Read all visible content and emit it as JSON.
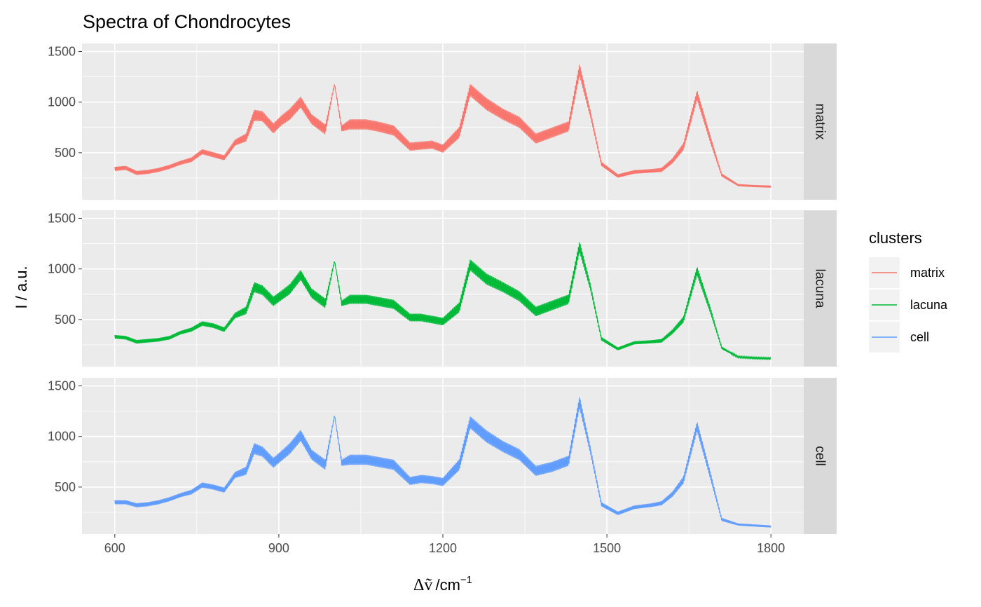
{
  "chart_data": {
    "type": "line",
    "title": "Spectra of Chondrocytes",
    "xlabel": {
      "symbol": "Δṽ",
      "slash": "/",
      "unit": "cm",
      "exponent": "−1"
    },
    "ylabel": "I / a.u.",
    "xlim": [
      540,
      1860
    ],
    "ylim": [
      35,
      1580
    ],
    "x_ticks": [
      600,
      900,
      1200,
      1500,
      1800
    ],
    "y_ticks": [
      500,
      1000,
      1500
    ],
    "grid": true,
    "facet": "rows",
    "legend": {
      "title": "clusters",
      "position": "right",
      "entries": [
        "matrix",
        "lacuna",
        "cell"
      ]
    },
    "series": [
      {
        "name": "matrix",
        "color": "#f8766d",
        "x": [
          600,
          620,
          640,
          660,
          680,
          700,
          720,
          740,
          760,
          780,
          800,
          820,
          840,
          855,
          870,
          890,
          905,
          920,
          940,
          960,
          985,
          1002,
          1015,
          1030,
          1060,
          1080,
          1110,
          1140,
          1160,
          1180,
          1200,
          1230,
          1250,
          1280,
          1310,
          1340,
          1370,
          1400,
          1430,
          1450,
          1470,
          1490,
          1520,
          1550,
          1580,
          1600,
          1620,
          1640,
          1665,
          1690,
          1710,
          1740,
          1770,
          1800
        ],
        "y": [
          340,
          350,
          300,
          310,
          330,
          360,
          400,
          430,
          510,
          480,
          450,
          600,
          650,
          870,
          860,
          740,
          820,
          880,
          1000,
          830,
          730,
          1180,
          740,
          780,
          780,
          760,
          720,
          560,
          570,
          580,
          540,
          700,
          1120,
          980,
          880,
          800,
          640,
          700,
          760,
          1320,
          880,
          390,
          270,
          310,
          320,
          330,
          420,
          560,
          1070,
          620,
          280,
          180,
          170,
          165
        ],
        "amp": [
          40,
          40,
          40,
          40,
          40,
          40,
          40,
          45,
          50,
          50,
          50,
          60,
          80,
          110,
          100,
          100,
          100,
          110,
          110,
          100,
          100,
          20,
          60,
          100,
          100,
          100,
          100,
          80,
          80,
          80,
          80,
          110,
          120,
          120,
          110,
          110,
          100,
          100,
          100,
          120,
          70,
          40,
          35,
          35,
          35,
          40,
          50,
          70,
          100,
          70,
          30,
          20,
          20,
          20
        ]
      },
      {
        "name": "lacuna",
        "color": "#00ba38",
        "x": [
          600,
          620,
          640,
          660,
          680,
          700,
          720,
          740,
          760,
          780,
          800,
          820,
          840,
          855,
          870,
          890,
          905,
          920,
          940,
          960,
          985,
          1002,
          1015,
          1030,
          1060,
          1080,
          1110,
          1140,
          1160,
          1180,
          1200,
          1230,
          1250,
          1280,
          1310,
          1340,
          1370,
          1400,
          1430,
          1450,
          1470,
          1490,
          1520,
          1550,
          1580,
          1600,
          1620,
          1640,
          1665,
          1690,
          1710,
          1740,
          1770,
          1800
        ],
        "y": [
          330,
          320,
          280,
          290,
          300,
          320,
          370,
          400,
          460,
          440,
          400,
          540,
          590,
          820,
          790,
          680,
          740,
          800,
          940,
          760,
          660,
          1080,
          660,
          700,
          700,
          680,
          650,
          520,
          520,
          500,
          480,
          620,
          1040,
          900,
          820,
          730,
          580,
          640,
          700,
          1220,
          820,
          310,
          210,
          270,
          280,
          290,
          380,
          500,
          980,
          580,
          220,
          130,
          120,
          115
        ],
        "amp": [
          35,
          35,
          35,
          35,
          35,
          35,
          35,
          40,
          45,
          45,
          45,
          55,
          75,
          100,
          95,
          95,
          95,
          100,
          100,
          95,
          95,
          15,
          55,
          90,
          90,
          90,
          90,
          75,
          75,
          75,
          75,
          100,
          110,
          110,
          100,
          100,
          95,
          95,
          95,
          110,
          65,
          35,
          30,
          30,
          30,
          35,
          45,
          60,
          90,
          60,
          25,
          15,
          15,
          15
        ]
      },
      {
        "name": "cell",
        "color": "#619cff",
        "x": [
          600,
          620,
          640,
          660,
          680,
          700,
          720,
          740,
          760,
          780,
          800,
          820,
          840,
          855,
          870,
          890,
          905,
          920,
          940,
          960,
          985,
          1002,
          1015,
          1030,
          1060,
          1080,
          1110,
          1140,
          1160,
          1180,
          1200,
          1230,
          1250,
          1280,
          1310,
          1340,
          1370,
          1400,
          1430,
          1450,
          1470,
          1490,
          1520,
          1550,
          1580,
          1600,
          1620,
          1640,
          1665,
          1690,
          1710,
          1740,
          1770,
          1800
        ],
        "y": [
          350,
          350,
          320,
          330,
          350,
          380,
          420,
          450,
          520,
          500,
          470,
          620,
          660,
          880,
          850,
          740,
          810,
          880,
          1010,
          820,
          720,
          1210,
          740,
          770,
          770,
          750,
          720,
          560,
          580,
          570,
          550,
          720,
          1140,
          1000,
          900,
          820,
          660,
          700,
          760,
          1340,
          860,
          330,
          240,
          300,
          320,
          340,
          430,
          570,
          1100,
          600,
          180,
          130,
          120,
          110
        ],
        "amp": [
          40,
          40,
          40,
          40,
          40,
          40,
          40,
          45,
          50,
          50,
          50,
          60,
          80,
          110,
          100,
          100,
          100,
          110,
          110,
          100,
          100,
          20,
          60,
          100,
          100,
          100,
          100,
          80,
          80,
          80,
          80,
          110,
          120,
          120,
          110,
          110,
          100,
          100,
          100,
          120,
          70,
          40,
          35,
          35,
          35,
          40,
          50,
          70,
          100,
          70,
          30,
          20,
          20,
          20
        ]
      }
    ]
  }
}
